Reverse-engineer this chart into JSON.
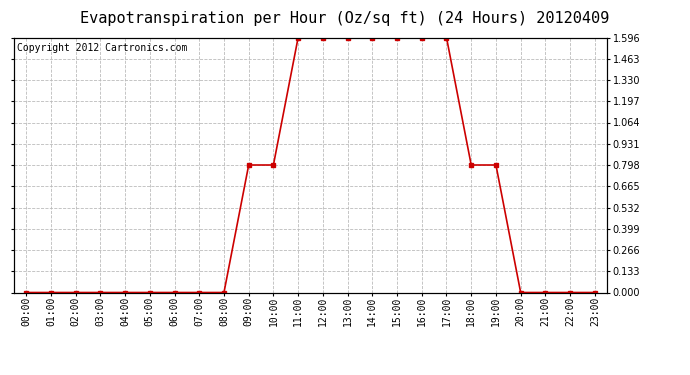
{
  "title": "Evapotranspiration per Hour (Oz/sq ft) (24 Hours) 20120409",
  "copyright_text": "Copyright 2012 Cartronics.com",
  "hours": [
    0,
    1,
    2,
    3,
    4,
    5,
    6,
    7,
    8,
    9,
    10,
    11,
    12,
    13,
    14,
    15,
    16,
    17,
    18,
    19,
    20,
    21,
    22,
    23
  ],
  "values": [
    0.0,
    0.0,
    0.0,
    0.0,
    0.0,
    0.0,
    0.0,
    0.0,
    0.0,
    0.798,
    0.798,
    1.596,
    1.596,
    1.596,
    1.596,
    1.596,
    1.596,
    1.596,
    0.798,
    0.798,
    0.0,
    0.0,
    0.0,
    0.0
  ],
  "x_labels": [
    "00:00",
    "01:00",
    "02:00",
    "03:00",
    "04:00",
    "05:00",
    "06:00",
    "07:00",
    "08:00",
    "09:00",
    "10:00",
    "11:00",
    "12:00",
    "13:00",
    "14:00",
    "15:00",
    "16:00",
    "17:00",
    "18:00",
    "19:00",
    "20:00",
    "21:00",
    "22:00",
    "23:00"
  ],
  "y_ticks": [
    0.0,
    0.133,
    0.266,
    0.399,
    0.532,
    0.665,
    0.798,
    0.931,
    1.064,
    1.197,
    1.33,
    1.463,
    1.596
  ],
  "line_color": "#cc0000",
  "marker": "s",
  "marker_size": 3,
  "bg_color": "#ffffff",
  "plot_bg_color": "#ffffff",
  "grid_color": "#bbbbbb",
  "title_fontsize": 11,
  "tick_fontsize": 7,
  "copyright_fontsize": 7,
  "ylim": [
    0.0,
    1.596
  ],
  "xlim": [
    -0.5,
    23.5
  ]
}
